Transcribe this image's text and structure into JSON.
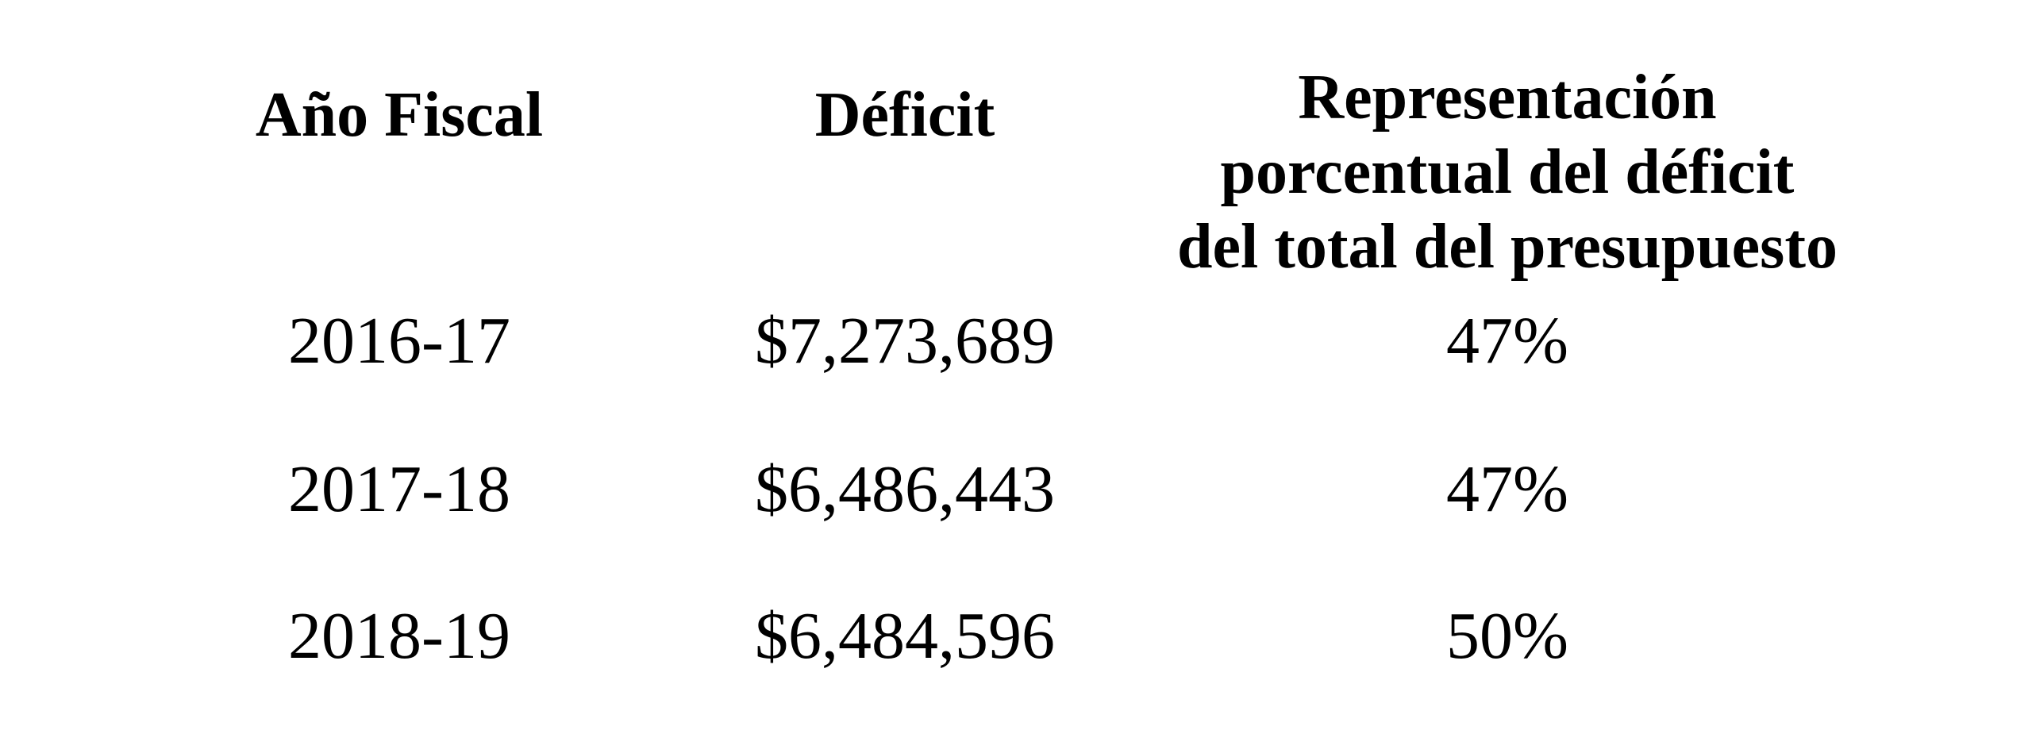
{
  "table": {
    "headers": [
      [
        "Año Fiscal"
      ],
      [
        "Déficit"
      ],
      [
        "Representación",
        "porcentual del déficit",
        "del total del presupuesto"
      ]
    ],
    "rows": [
      [
        "2016-17",
        "$7,273,689",
        "47%"
      ],
      [
        "2017-18",
        "$6,486,443",
        "47%"
      ],
      [
        "2018-19",
        "$6,484,596",
        "50%"
      ]
    ]
  }
}
